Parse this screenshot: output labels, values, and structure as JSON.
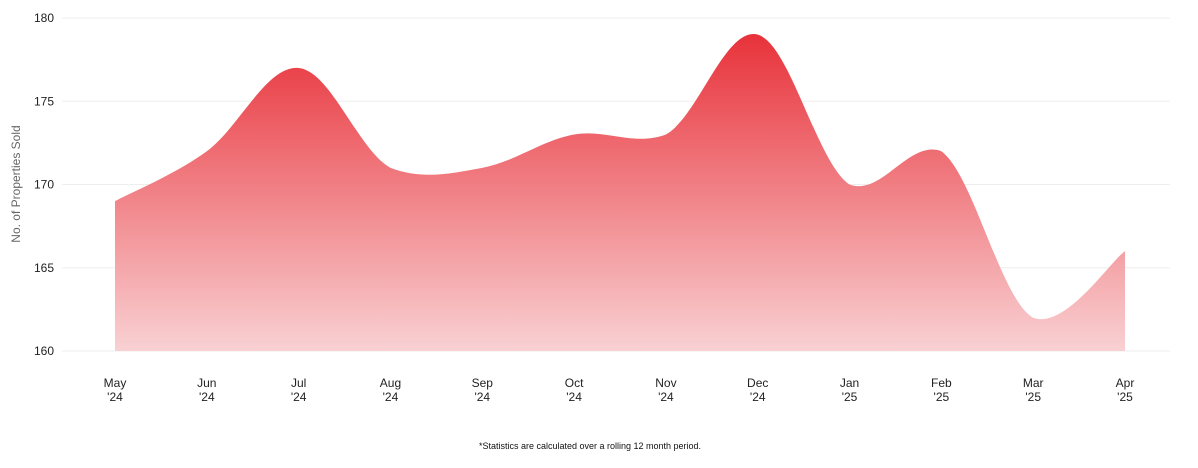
{
  "chart_data": {
    "type": "area",
    "title": "",
    "xlabel": "",
    "ylabel": "No. of Properties Sold",
    "categories": [
      [
        "May",
        "'24"
      ],
      [
        "Jun",
        "'24"
      ],
      [
        "Jul",
        "'24"
      ],
      [
        "Aug",
        "'24"
      ],
      [
        "Sep",
        "'24"
      ],
      [
        "Oct",
        "'24"
      ],
      [
        "Nov",
        "'24"
      ],
      [
        "Dec",
        "'24"
      ],
      [
        "Jan",
        "'25"
      ],
      [
        "Feb",
        "'25"
      ],
      [
        "Mar",
        "'25"
      ],
      [
        "Apr",
        "'25"
      ]
    ],
    "series": [
      {
        "values": [
          169,
          172,
          177,
          171,
          171,
          173,
          173,
          179,
          170,
          172,
          162,
          166
        ]
      }
    ],
    "ylim": [
      160,
      180
    ],
    "yticks": [
      160,
      165,
      170,
      175,
      180
    ],
    "grid": true,
    "legend": "none",
    "colors": {
      "fill_top": "#e8323a",
      "fill_bottom": "#f9d1d3",
      "grid": "#eeeeee"
    }
  },
  "footnote": "*Statistics are calculated over a rolling 12 month period."
}
